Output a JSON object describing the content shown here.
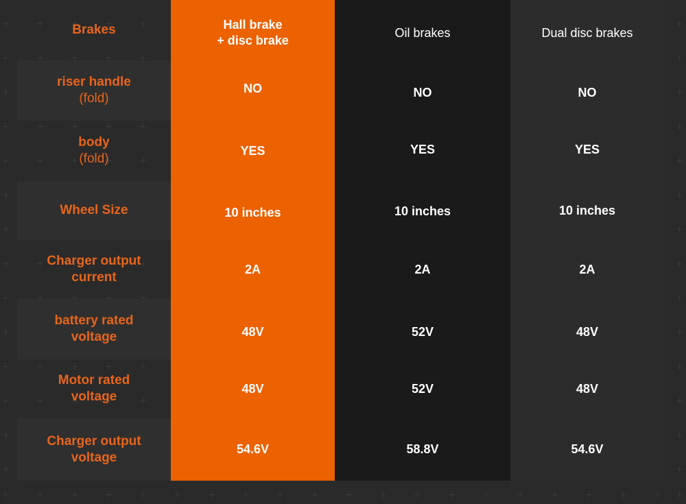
{
  "columns": [
    {
      "name": "col-1",
      "brakes": "Hall brake\n+ disc brake"
    },
    {
      "name": "col-2",
      "brakes": "Oil brakes"
    },
    {
      "name": "col-3",
      "brakes": "Dual disc brakes"
    }
  ],
  "rows": [
    {
      "label": "Brakes",
      "sub": "",
      "values": [
        "Hall brake",
        "Oil brakes",
        "Dual disc brakes"
      ],
      "values_line2": [
        "+ disc brake",
        "",
        ""
      ]
    },
    {
      "label": "riser handle",
      "sub": "(fold)",
      "values": [
        "NO",
        "NO",
        "NO"
      ]
    },
    {
      "label": "body",
      "sub": "(fold)",
      "values": [
        "YES",
        "YES",
        "YES"
      ]
    },
    {
      "label": "Wheel Size",
      "sub": "",
      "values": [
        "10 inches",
        "10 inches",
        "10 inches"
      ]
    },
    {
      "label": "Charger output",
      "sub": "current",
      "values": [
        "2A",
        "2A",
        "2A"
      ]
    },
    {
      "label": "battery rated",
      "sub": "voltage",
      "values": [
        "48V",
        "52V",
        "48V"
      ]
    },
    {
      "label": "Motor rated",
      "sub": "voltage",
      "values": [
        "48V",
        "52V",
        "48V"
      ]
    },
    {
      "label": "Charger output",
      "sub": "voltage",
      "values": [
        "54.6V",
        "58.8V",
        "54.6V"
      ]
    }
  ],
  "colors": {
    "accent": "#ec6100",
    "label_text": "#e8651a",
    "background": "#1b1b1b",
    "row_shade": "#2f2f2f",
    "column_gray": "#2c2c2c"
  }
}
